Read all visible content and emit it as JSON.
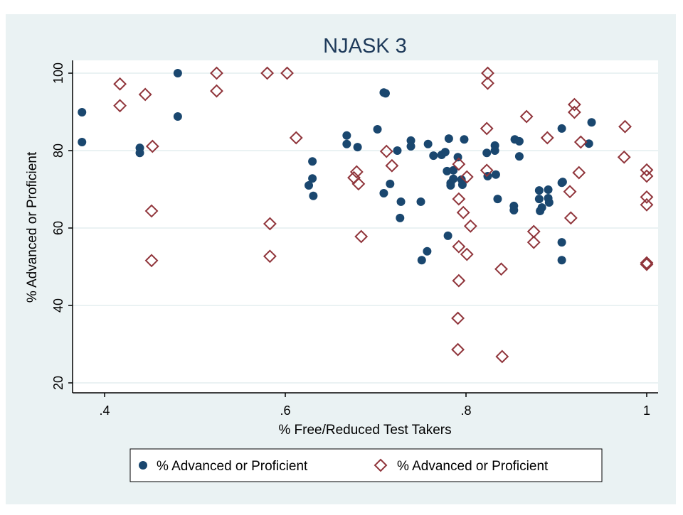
{
  "chart_data": {
    "type": "scatter",
    "title": "NJASK 3",
    "xlabel": "% Free/Reduced Test Takers",
    "ylabel": "% Advanced or Proficient",
    "xlim": [
      0.36,
      1.012
    ],
    "ylim": [
      17,
      103
    ],
    "x_ticks": [
      0.4,
      0.6,
      0.8,
      1
    ],
    "x_tick_labels": [
      ".4",
      ".6",
      ".8",
      "1"
    ],
    "y_ticks": [
      20,
      40,
      60,
      80,
      100
    ],
    "y_tick_labels": [
      "20",
      "40",
      "60",
      "80",
      "100"
    ],
    "grid": true,
    "legend_position": "bottom",
    "colors": {
      "series1": "#1a476f",
      "series2": "#90353b",
      "background": "#eaf2f3"
    },
    "series": [
      {
        "name": "% Advanced or Proficient",
        "marker": "filled-circle",
        "points": [
          [
            0.375,
            89.9
          ],
          [
            0.375,
            82.2
          ],
          [
            0.439,
            80.7
          ],
          [
            0.439,
            79.4
          ],
          [
            0.481,
            100
          ],
          [
            0.481,
            88.8
          ],
          [
            0.63,
            77.2
          ],
          [
            0.63,
            72.8
          ],
          [
            0.626,
            71.0
          ],
          [
            0.631,
            68.3
          ],
          [
            0.668,
            83.9
          ],
          [
            0.668,
            81.7
          ],
          [
            0.68,
            80.9
          ],
          [
            0.702,
            85.5
          ],
          [
            0.709,
            95.0
          ],
          [
            0.711,
            94.8
          ],
          [
            0.739,
            82.6
          ],
          [
            0.739,
            81.1
          ],
          [
            0.724,
            80.0
          ],
          [
            0.716,
            71.4
          ],
          [
            0.709,
            69.0
          ],
          [
            0.728,
            66.8
          ],
          [
            0.727,
            62.6
          ],
          [
            0.75,
            66.8
          ],
          [
            0.78,
            58.0
          ],
          [
            0.757,
            54.0
          ],
          [
            0.751,
            51.7
          ],
          [
            0.758,
            81.7
          ],
          [
            0.764,
            78.7
          ],
          [
            0.773,
            78.9
          ],
          [
            0.777,
            79.6
          ],
          [
            0.791,
            78.3
          ],
          [
            0.781,
            83.1
          ],
          [
            0.798,
            82.9
          ],
          [
            0.779,
            74.7
          ],
          [
            0.783,
            71.6
          ],
          [
            0.786,
            74.9
          ],
          [
            0.786,
            72.7
          ],
          [
            0.783,
            71.0
          ],
          [
            0.796,
            71.2
          ],
          [
            0.795,
            72.5
          ],
          [
            0.823,
            79.4
          ],
          [
            0.832,
            81.3
          ],
          [
            0.832,
            80.0
          ],
          [
            0.824,
            73.4
          ],
          [
            0.833,
            73.8
          ],
          [
            0.835,
            67.5
          ],
          [
            0.853,
            65.7
          ],
          [
            0.853,
            64.6
          ],
          [
            0.854,
            82.9
          ],
          [
            0.859,
            82.4
          ],
          [
            0.859,
            78.5
          ],
          [
            0.881,
            67.5
          ],
          [
            0.881,
            69.7
          ],
          [
            0.891,
            69.9
          ],
          [
            0.891,
            67.7
          ],
          [
            0.892,
            66.6
          ],
          [
            0.882,
            64.4
          ],
          [
            0.884,
            65.3
          ],
          [
            0.906,
            71.7
          ],
          [
            0.907,
            71.9
          ],
          [
            0.906,
            56.3
          ],
          [
            0.906,
            51.7
          ],
          [
            0.906,
            85.7
          ],
          [
            0.936,
            81.8
          ],
          [
            0.939,
            87.3
          ]
        ]
      },
      {
        "name": "% Advanced or Proficient",
        "marker": "hollow-diamond",
        "points": [
          [
            0.417,
            97.2
          ],
          [
            0.417,
            91.6
          ],
          [
            0.445,
            94.5
          ],
          [
            0.453,
            81.1
          ],
          [
            0.452,
            64.4
          ],
          [
            0.452,
            51.6
          ],
          [
            0.524,
            100
          ],
          [
            0.524,
            95.4
          ],
          [
            0.58,
            100
          ],
          [
            0.602,
            100
          ],
          [
            0.612,
            83.3
          ],
          [
            0.583,
            61.1
          ],
          [
            0.583,
            52.7
          ],
          [
            0.712,
            79.8
          ],
          [
            0.718,
            76.1
          ],
          [
            0.679,
            74.5
          ],
          [
            0.676,
            73.0
          ],
          [
            0.681,
            71.4
          ],
          [
            0.684,
            57.8
          ],
          [
            0.792,
            76.5
          ],
          [
            0.801,
            73.2
          ],
          [
            0.792,
            67.5
          ],
          [
            0.797,
            64.0
          ],
          [
            0.805,
            60.5
          ],
          [
            0.792,
            55.2
          ],
          [
            0.801,
            53.2
          ],
          [
            0.792,
            46.4
          ],
          [
            0.791,
            36.7
          ],
          [
            0.791,
            28.6
          ],
          [
            0.824,
            100
          ],
          [
            0.824,
            97.4
          ],
          [
            0.823,
            85.7
          ],
          [
            0.823,
            74.9
          ],
          [
            0.84,
            26.8
          ],
          [
            0.839,
            49.4
          ],
          [
            0.867,
            88.8
          ],
          [
            0.89,
            83.3
          ],
          [
            0.92,
            91.9
          ],
          [
            0.92,
            89.9
          ],
          [
            0.927,
            82.2
          ],
          [
            0.925,
            74.3
          ],
          [
            0.915,
            69.4
          ],
          [
            0.916,
            62.6
          ],
          [
            0.875,
            59.1
          ],
          [
            0.875,
            56.3
          ],
          [
            0.976,
            86.2
          ],
          [
            0.975,
            78.3
          ],
          [
            1,
            75
          ],
          [
            1,
            73.4
          ],
          [
            1,
            68
          ],
          [
            1,
            66
          ],
          [
            1,
            51
          ],
          [
            1,
            50.6
          ]
        ]
      }
    ]
  }
}
